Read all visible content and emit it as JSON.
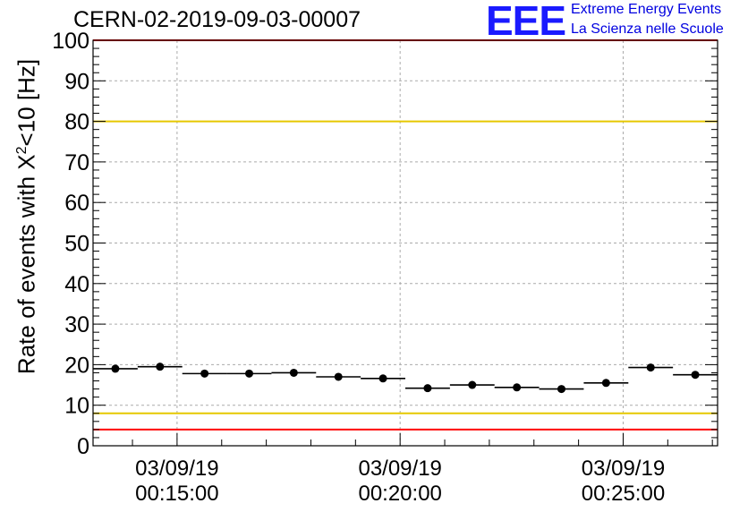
{
  "header": {
    "run_title": "CERN-02-2019-09-03-00007",
    "logo_text": "EEE",
    "logo_line1": "Extreme Energy Events",
    "logo_line2": "La Scienza nelle Scuole"
  },
  "colors": {
    "data": "#000000",
    "limit_red": "#ff0000",
    "limit_yellow": "#e6c800",
    "grid": "#aaaaaa",
    "logo_blue": "#1a1aff"
  },
  "chart_data": {
    "type": "scatter",
    "title": "CERN-02-2019-09-03-00007",
    "xlabel": "",
    "ylabel_main": "Rate of events with X",
    "ylabel_sup": "2",
    "ylabel_tail": "<10 [Hz]",
    "ylim": [
      0,
      100
    ],
    "xlim": [
      "00:13:07",
      "00:27:07"
    ],
    "y_ticks": [
      0,
      10,
      20,
      30,
      40,
      50,
      60,
      70,
      80,
      90,
      100
    ],
    "x_ticks": [
      {
        "time": "00:15:00",
        "date": "03/09/19"
      },
      {
        "time": "00:20:00",
        "date": "03/09/19"
      },
      {
        "time": "00:25:00",
        "date": "03/09/19"
      }
    ],
    "grid": true,
    "bin_width_s": 60,
    "points": [
      {
        "t": "00:13:37",
        "y": 19.0
      },
      {
        "t": "00:14:37",
        "y": 19.5
      },
      {
        "t": "00:15:37",
        "y": 17.8
      },
      {
        "t": "00:16:37",
        "y": 17.8
      },
      {
        "t": "00:17:37",
        "y": 18.0
      },
      {
        "t": "00:18:37",
        "y": 17.0
      },
      {
        "t": "00:19:37",
        "y": 16.6
      },
      {
        "t": "00:20:37",
        "y": 14.2
      },
      {
        "t": "00:21:37",
        "y": 15.0
      },
      {
        "t": "00:22:37",
        "y": 14.4
      },
      {
        "t": "00:23:37",
        "y": 14.0
      },
      {
        "t": "00:24:37",
        "y": 15.5
      },
      {
        "t": "00:25:37",
        "y": 19.3
      },
      {
        "t": "00:26:37",
        "y": 17.5
      }
    ],
    "reference_lines": [
      {
        "y": 100,
        "color": "#ff0000"
      },
      {
        "y": 80,
        "color": "#e6c800"
      },
      {
        "y": 8,
        "color": "#e6c800"
      },
      {
        "y": 4,
        "color": "#ff0000"
      }
    ]
  }
}
